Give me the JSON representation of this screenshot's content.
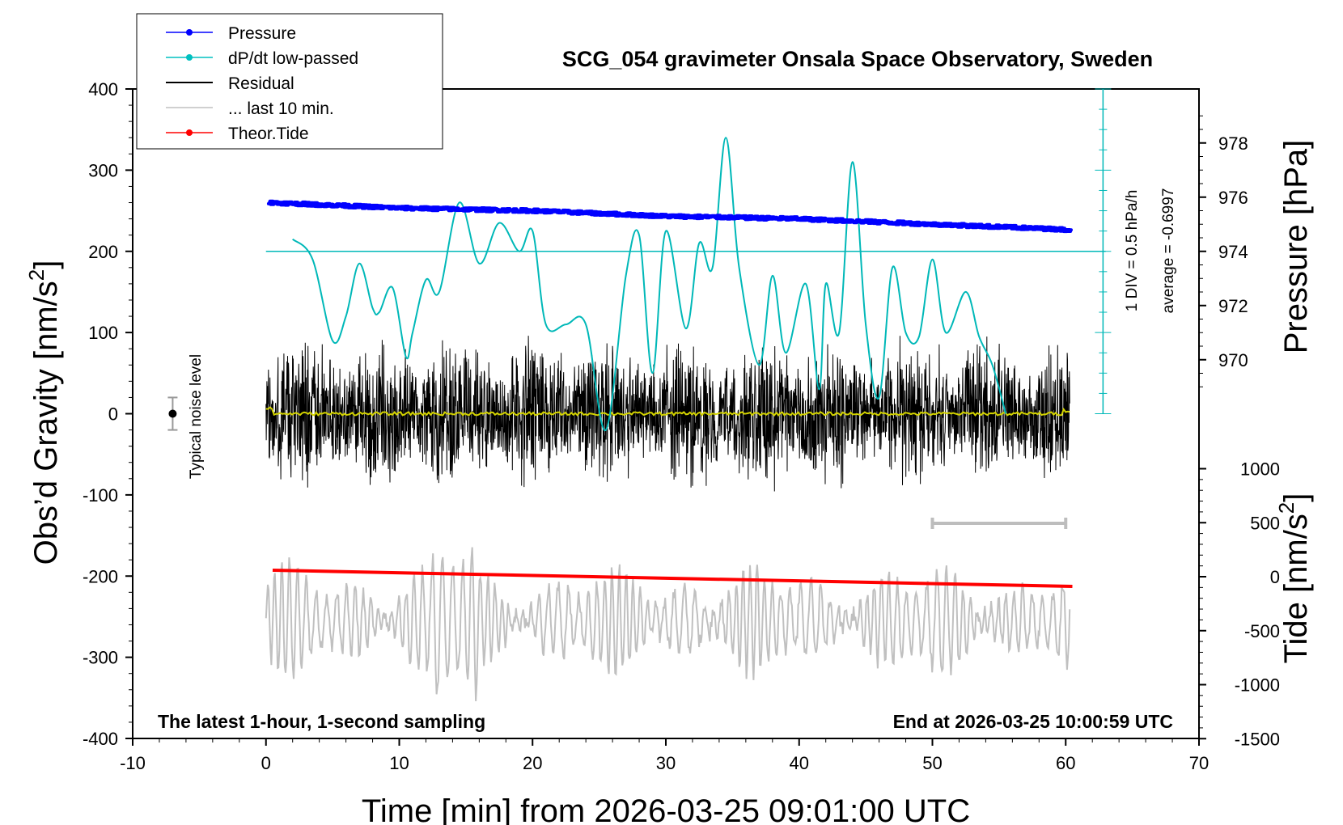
{
  "chart_data": {
    "type": "line",
    "title": "SCG_054 gravimeter Onsala Space Observatory, Sweden",
    "xlabel": "Time [min] from 2026-03-25 09:01:00 UTC",
    "ylabel_left_base": "Obs’d Gravity [nm/s",
    "ylabel_left_sup": "2",
    "ylabel_left_end": "]",
    "ylabel_right_pressure": "Pressure [hPa]",
    "ylabel_right_tide_base": "Tide [nm/s",
    "ylabel_right_tide_sup": "2",
    "ylabel_right_tide_end": "]",
    "xlim": [
      -10,
      70
    ],
    "xticks": [
      "-10",
      "0",
      "10",
      "20",
      "30",
      "40",
      "50",
      "60",
      "70"
    ],
    "ylim_left": [
      -400,
      400
    ],
    "yticks_left": [
      "-400",
      "-300",
      "-200",
      "-100",
      "0",
      "100",
      "200",
      "300",
      "400"
    ],
    "pressure_ticks": [
      "970",
      "972",
      "974",
      "976",
      "978"
    ],
    "tide_ticks": [
      "-1500",
      "-1000",
      "-500",
      "0",
      "500",
      "1000"
    ],
    "legend": {
      "position": "top-left",
      "entries": [
        {
          "label": "Pressure",
          "color": "#0000ff",
          "marker": true
        },
        {
          "label": "dP/dt low-passed",
          "color": "#00c0c0",
          "marker": true
        },
        {
          "label": "Residual",
          "color": "#000000",
          "marker": false
        },
        {
          "label": "... last 10 min.",
          "color": "#c0c0c0",
          "marker": false
        },
        {
          "label": "Theor.Tide",
          "color": "#ff0000",
          "marker": true
        }
      ]
    },
    "annotations": {
      "noise_level": "Typical noise level",
      "sampling_note": "The latest 1-hour, 1-second sampling",
      "end_note": "End at 2026-03-25 10:00:59 UTC",
      "div_note": "1 DIV = 0.5 hPa/h",
      "average_note": "average = -0.6997"
    },
    "series": [
      {
        "name": "Pressure",
        "unit": "hPa",
        "x": [
          0.3,
          10,
          20,
          30,
          40,
          50,
          60.3
        ],
        "values": [
          975.8,
          975.6,
          975.5,
          975.3,
          975.2,
          975.0,
          974.8
        ]
      },
      {
        "name": "dP/dt low-passed",
        "unit": "nm/s2 (plot scale)",
        "x": [
          2,
          3.5,
          5,
          6,
          7,
          8,
          8.5,
          9.5,
          10.5,
          11,
          12,
          13,
          14.5,
          16,
          17.5,
          19,
          20,
          21,
          22.5,
          24,
          25.5,
          27,
          28,
          29,
          30,
          31.5,
          32.5,
          33.5,
          34.5,
          35.5,
          37,
          38,
          39,
          40.5,
          41.5,
          42,
          43,
          44,
          45,
          46,
          47,
          48,
          49,
          50,
          51,
          52.5,
          53.5,
          54.5,
          55.5
        ],
        "values": [
          215,
          190,
          90,
          120,
          185,
          130,
          125,
          155,
          70,
          100,
          165,
          150,
          260,
          185,
          235,
          200,
          225,
          110,
          110,
          110,
          -20,
          170,
          220,
          50,
          225,
          105,
          210,
          180,
          340,
          180,
          60,
          170,
          75,
          160,
          30,
          160,
          100,
          310,
          110,
          20,
          180,
          100,
          95,
          190,
          100,
          150,
          95,
          60,
          0
        ]
      },
      {
        "name": "Residual",
        "unit": "nm/s2",
        "x": [
          0,
          60.3
        ],
        "values": [
          0,
          0
        ],
        "noise_amplitude": 110
      },
      {
        "name": "... last 10 min.",
        "unit": "nm/s2 (plot scale)",
        "x": [
          0,
          60.3
        ],
        "values": [
          -255,
          -255
        ],
        "noise_amplitude": 70
      },
      {
        "name": "Theor.Tide",
        "unit": "nm/s2",
        "x": [
          0.5,
          60.5
        ],
        "values": [
          60,
          -90
        ]
      }
    ],
    "noise_bar": {
      "x": -7,
      "y": 0,
      "halfwidth": 20
    },
    "last10_bar": {
      "x0": 50,
      "x1": 60,
      "y": -135
    }
  }
}
